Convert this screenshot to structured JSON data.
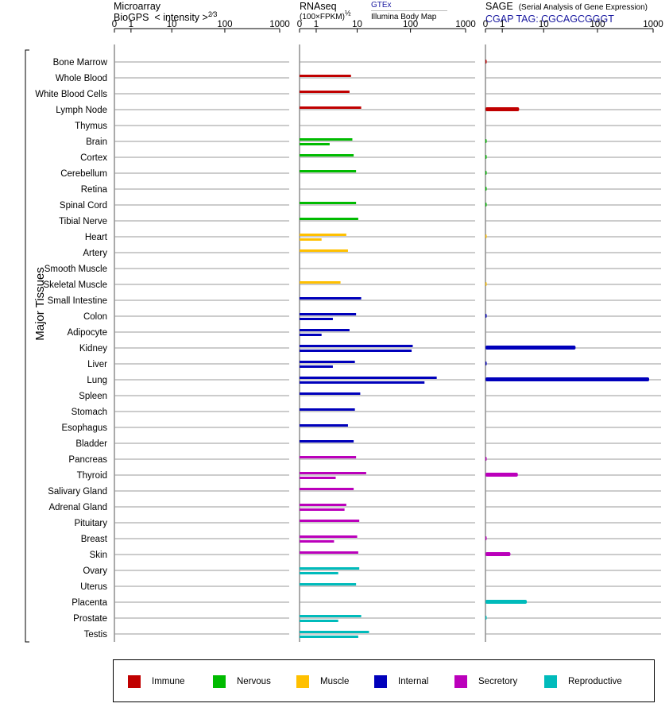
{
  "headers": {
    "microarray": {
      "line1": "Microarray",
      "line2": "BioGPS",
      "intensity": "< intensity >",
      "exponent": "2⁄3"
    },
    "rnaseq": {
      "line1": "RNAseq",
      "line2": "(100×FPKM)",
      "exponent": "½",
      "gtex": "GTEx",
      "bodymap": "Illumina Body Map"
    },
    "sage": {
      "line1": "SAGE",
      "desc": "(Serial Analysis of Gene Expression)",
      "tag": "CGAP TAG: CGCAGCGGGT"
    }
  },
  "y_group_label": "Major Tissues",
  "legend": [
    {
      "label": "Immune",
      "color": "#c00000"
    },
    {
      "label": "Nervous",
      "color": "#00bb00"
    },
    {
      "label": "Muscle",
      "color": "#ffc000"
    },
    {
      "label": "Internal",
      "color": "#0000bb"
    },
    {
      "label": "Secretory",
      "color": "#bb00bb"
    },
    {
      "label": "Reproductive",
      "color": "#00bbbb"
    }
  ],
  "chart_data": {
    "type": "bar",
    "orientation": "horizontal",
    "scale": "log",
    "tick_labels": [
      "0",
      "1",
      "10",
      "100",
      "1000"
    ],
    "xlim": [
      0,
      1000
    ],
    "tissues": [
      {
        "name": "Bone Marrow",
        "group": "Immune",
        "rnaseq": [],
        "sage": 0.02
      },
      {
        "name": "Whole Blood",
        "group": "Immune",
        "rnaseq": [
          7.5
        ],
        "sage": 0
      },
      {
        "name": "White Blood Cells",
        "group": "Immune",
        "rnaseq": [
          7
        ],
        "sage": 0
      },
      {
        "name": "Lymph Node",
        "group": "Immune",
        "rnaseq": [
          12
        ],
        "sage": 3
      },
      {
        "name": "Thymus",
        "group": "Immune",
        "rnaseq": [],
        "sage": 0
      },
      {
        "name": "Brain",
        "group": "Nervous",
        "rnaseq": [
          8,
          2.5
        ],
        "sage": 0.01
      },
      {
        "name": "Cortex",
        "group": "Nervous",
        "rnaseq": [
          8.5
        ],
        "sage": 0.01
      },
      {
        "name": "Cerebellum",
        "group": "Nervous",
        "rnaseq": [
          9.5
        ],
        "sage": 0.01
      },
      {
        "name": "Retina",
        "group": "Nervous",
        "rnaseq": [],
        "sage": 0.01
      },
      {
        "name": "Spinal Cord",
        "group": "Nervous",
        "rnaseq": [
          9.5
        ],
        "sage": 0.01
      },
      {
        "name": "Tibial Nerve",
        "group": "Nervous",
        "rnaseq": [
          10.5
        ],
        "sage": 0
      },
      {
        "name": "Heart",
        "group": "Muscle",
        "rnaseq": [
          6,
          1.5
        ],
        "sage": 0.005
      },
      {
        "name": "Artery",
        "group": "Muscle",
        "rnaseq": [
          6.5
        ],
        "sage": 0
      },
      {
        "name": "Smooth Muscle",
        "group": "Muscle",
        "rnaseq": [],
        "sage": 0
      },
      {
        "name": "Skeletal Muscle",
        "group": "Muscle",
        "rnaseq": [
          4.5
        ],
        "sage": 0.005
      },
      {
        "name": "Small Intestine",
        "group": "Internal",
        "rnaseq": [
          12
        ],
        "sage": 0
      },
      {
        "name": "Colon",
        "group": "Internal",
        "rnaseq": [
          9.5,
          3
        ],
        "sage": 0.01
      },
      {
        "name": "Adipocyte",
        "group": "Internal",
        "rnaseq": [
          7,
          1.5
        ],
        "sage": 0
      },
      {
        "name": "Kidney",
        "group": "Internal",
        "rnaseq": [
          110,
          105
        ],
        "sage": 40
      },
      {
        "name": "Liver",
        "group": "Internal",
        "rnaseq": [
          9,
          3
        ],
        "sage": 0.01
      },
      {
        "name": "Lung",
        "group": "Internal",
        "rnaseq": [
          300,
          180
        ],
        "sage": 850
      },
      {
        "name": "Spleen",
        "group": "Internal",
        "rnaseq": [
          11.5
        ],
        "sage": 0
      },
      {
        "name": "Stomach",
        "group": "Internal",
        "rnaseq": [
          9
        ],
        "sage": 0
      },
      {
        "name": "Esophagus",
        "group": "Internal",
        "rnaseq": [
          6.5
        ],
        "sage": 0
      },
      {
        "name": "Bladder",
        "group": "Internal",
        "rnaseq": [
          8.5
        ],
        "sage": 0
      },
      {
        "name": "Pancreas",
        "group": "Secretory",
        "rnaseq": [
          9.5
        ],
        "sage": 0.01
      },
      {
        "name": "Thyroid",
        "group": "Secretory",
        "rnaseq": [
          15,
          3.5
        ],
        "sage": 2.8
      },
      {
        "name": "Salivary Gland",
        "group": "Secretory",
        "rnaseq": [
          8.5
        ],
        "sage": 0
      },
      {
        "name": "Adrenal Gland",
        "group": "Secretory",
        "rnaseq": [
          6,
          5.5
        ],
        "sage": 0
      },
      {
        "name": "Pituitary",
        "group": "Secretory",
        "rnaseq": [
          11
        ],
        "sage": 0
      },
      {
        "name": "Breast",
        "group": "Secretory",
        "rnaseq": [
          10,
          3.2
        ],
        "sage": 0.01
      },
      {
        "name": "Skin",
        "group": "Secretory",
        "rnaseq": [
          10.5
        ],
        "sage": 1.8
      },
      {
        "name": "Ovary",
        "group": "Reproductive",
        "rnaseq": [
          11,
          4
        ],
        "sage": 0
      },
      {
        "name": "Uterus",
        "group": "Reproductive",
        "rnaseq": [
          9.5
        ],
        "sage": 0
      },
      {
        "name": "Placenta",
        "group": "Reproductive",
        "rnaseq": [],
        "sage": 4.5
      },
      {
        "name": "Prostate",
        "group": "Reproductive",
        "rnaseq": [
          12,
          4
        ],
        "sage": 0.005
      },
      {
        "name": "Testis",
        "group": "Reproductive",
        "rnaseq": [
          17,
          10.5
        ],
        "sage": 0
      }
    ]
  }
}
